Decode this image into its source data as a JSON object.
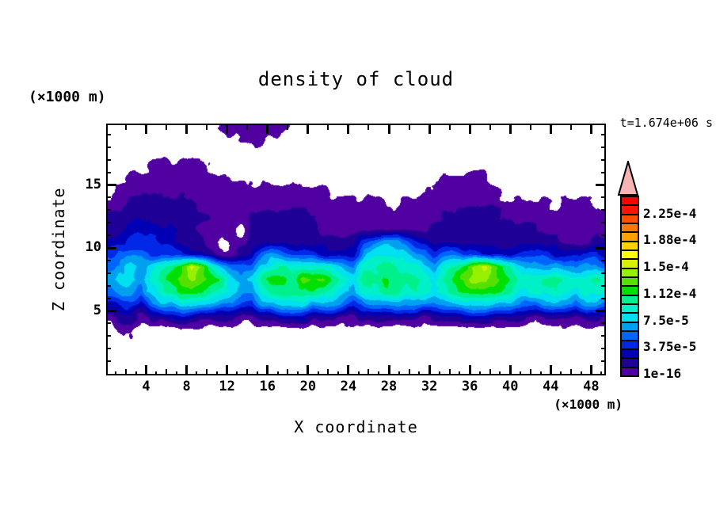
{
  "figure": {
    "title": "density of cloud",
    "time_annotation": "t=1.674e+06 s",
    "x_axis": {
      "label": "X coordinate",
      "unit": "(×1000 m)",
      "tick_labels": [
        4,
        8,
        12,
        16,
        20,
        24,
        28,
        32,
        36,
        40,
        44,
        48
      ]
    },
    "y_axis": {
      "label": "Z coordinate",
      "unit": "(×1000 m)",
      "tick_labels": [
        5,
        10,
        15
      ]
    }
  },
  "chart_data": {
    "type": "filled_contour",
    "title": "density of cloud",
    "xlabel": "X coordinate",
    "ylabel": "Z coordinate",
    "x_unit": "×1000 m",
    "z_unit": "×1000 m",
    "time_annotation": "t=1.674e+06 s",
    "x_range": [
      0,
      49.5
    ],
    "z_range": [
      0,
      19.75
    ],
    "x_ticks_labeled": [
      4,
      8,
      12,
      16,
      20,
      24,
      28,
      32,
      36,
      40,
      44,
      48
    ],
    "z_ticks_labeled": [
      5,
      10,
      15
    ],
    "grid_lines": false,
    "contour_levels": {
      "min": "1e-16",
      "step": 1.25e-05,
      "count": 20
    },
    "colorbar": {
      "labels_top_to_bottom": [
        "2.25e-4",
        "1.88e-4",
        "1.5e-4",
        "1.12e-4",
        "7.5e-5",
        "3.75e-5",
        "1e-16"
      ],
      "label_every_n_cells": 3,
      "colors_low_to_high": [
        "#5000a0",
        "#1e0096",
        "#0000b4",
        "#0028e6",
        "#0064ff",
        "#00a0f0",
        "#00e0f0",
        "#00f0c8",
        "#00f08c",
        "#00e000",
        "#55e000",
        "#96f000",
        "#d7f000",
        "#ffff00",
        "#ffd200",
        "#ffa000",
        "#ff7800",
        "#ff5000",
        "#ff1400",
        "#ff0000"
      ],
      "overflow_color": "#f8b4b4"
    },
    "grid": {
      "cols": 50,
      "rows": 20,
      "x_of_col": "col + 0.5 (×1000 m)",
      "z_of_row": "row + 0.5 (×1000 m)",
      "encoding": "each char = hex contour-level index at that cell (0 = clear air, e = 14th level ≈ 1.75e-4)",
      "rows_top_to_bottom": [
        "00000000000111111100000000000000000000000000000000",
        "00000000000001110000000000000000000000000000000000",
        "00000000000000000000000000000000000000000000000000",
        "00001111110000000000000000000000000000000000000000",
        "00111111111100000000000000000000011111000000000000",
        "01111111111111111111110000000000111111100000000000",
        "11222222211111111111111111110111111111111111011100",
        "22222222221111222222211111111111122222211111111111",
        "22333332211110222222211111111111222222222221111111",
        "33444332221011222222222224566543222222222222211122",
        "45554444332112356544433336777765455443333444333443",
        "5676789adb8655578988887658899887689acdb98666665665",
        "677689abcba97679aa9bab98799a999879abccba9889988898",
        "5665789aaa9876689999998768899888789aaaa98788887887",
        "34435667776554466777666545666665566777666556665665",
        "12212233322221122333222112222221222333222212221221",
        "01100000000000000000000000000000000000000000000000",
        "00000000000000000000000000000000000000000000000000",
        "00000000000000000000000000000000000000000000000000",
        "00000000000000000000000000000000000000000000000000"
      ]
    }
  }
}
